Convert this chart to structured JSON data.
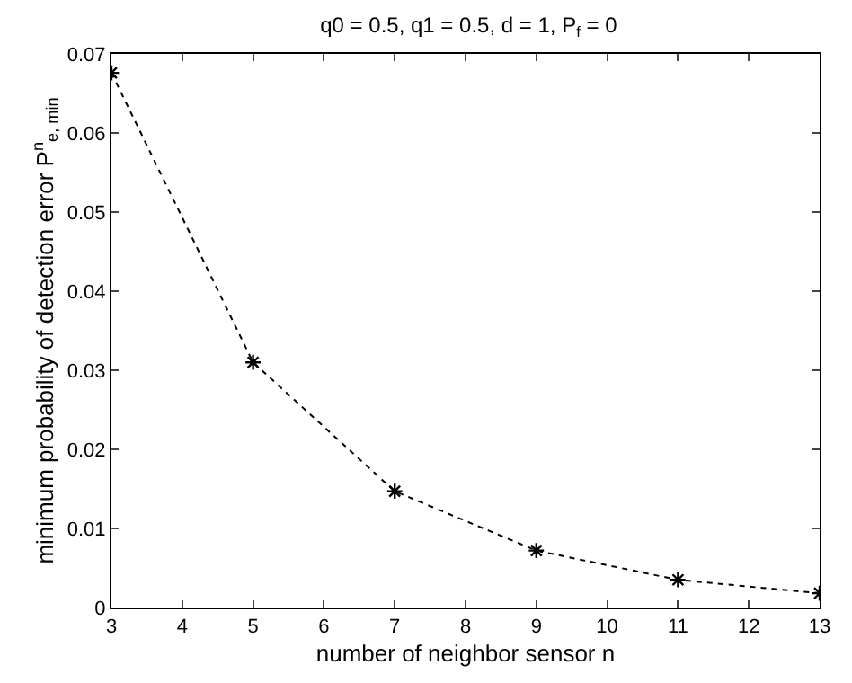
{
  "chart_data": {
    "type": "line",
    "title": "q0 = 0.5, q1 = 0.5, d = 1, P$_{f}$ = 0",
    "xlabel": "number of neighbor sensor n",
    "ylabel": "minimum probability of detection error P$^{n}$$_{e, min}$",
    "x": [
      3,
      5,
      7,
      9,
      11,
      13
    ],
    "series": [
      {
        "color": "#000000",
        "values": [
          0.0676,
          0.031,
          0.0147,
          0.0072,
          0.0035,
          0.0018
        ]
      }
    ],
    "xlim": [
      3,
      13
    ],
    "xticks": [
      3,
      4,
      5,
      6,
      7,
      8,
      9,
      10,
      11,
      12,
      13
    ],
    "ylim": [
      0,
      0.07
    ],
    "yticks": [
      0,
      0.01,
      0.02,
      0.03,
      0.04,
      0.05,
      0.06,
      0.07
    ],
    "grid": false,
    "marker": "cross",
    "line_style": "dotted"
  }
}
